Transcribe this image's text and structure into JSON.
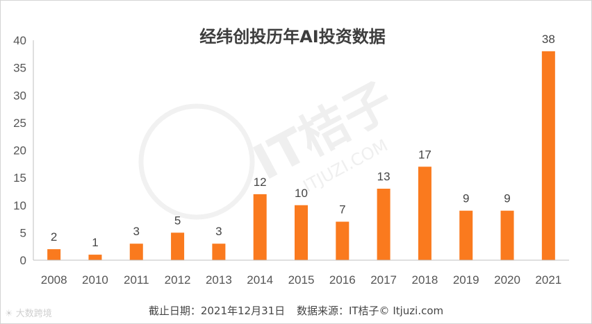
{
  "chart_data": {
    "type": "bar",
    "title": "经纬创投历年AI投资数据",
    "categories": [
      "2008",
      "2010",
      "2011",
      "2012",
      "2013",
      "2014",
      "2015",
      "2016",
      "2017",
      "2018",
      "2019",
      "2020",
      "2021"
    ],
    "values": [
      2,
      1,
      3,
      5,
      3,
      12,
      10,
      7,
      13,
      17,
      9,
      9,
      38
    ],
    "ylim": [
      0,
      40
    ],
    "yticks": [
      0,
      5,
      10,
      15,
      20,
      25,
      30,
      35,
      40
    ],
    "xlabel": "",
    "ylabel": "",
    "grid": false,
    "bar_color": "#fa7a1e"
  },
  "footer": {
    "date_text": "截止日期：2021年12月31日",
    "source_text": "数据来源：IT桔子© Itjuzi.com"
  },
  "watermark": {
    "brand": "IT桔子",
    "domain": "ITJUZI.COM",
    "corner": "大数跨境"
  }
}
